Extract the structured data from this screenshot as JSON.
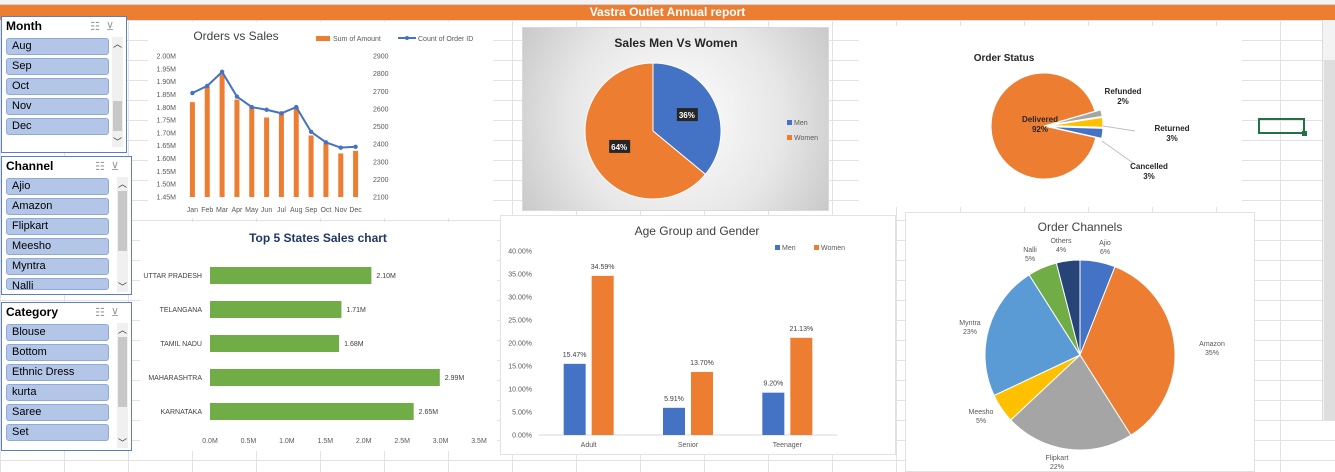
{
  "report": {
    "title": "Vastra Outlet Annual report"
  },
  "slicers": {
    "month": {
      "title": "Month",
      "items": [
        "Aug",
        "Sep",
        "Oct",
        "Nov",
        "Dec"
      ]
    },
    "channel": {
      "title": "Channel",
      "items": [
        "Ajio",
        "Amazon",
        "Flipkart",
        "Meesho",
        "Myntra",
        "Nalli"
      ]
    },
    "category": {
      "title": "Category",
      "items": [
        "Blouse",
        "Bottom",
        "Ethnic Dress",
        "kurta",
        "Saree",
        "Set"
      ]
    },
    "icons": {
      "multiselect": "multi-select-icon",
      "clear": "clear-filter-icon"
    }
  },
  "colors": {
    "orange": "#ed7d31",
    "blue": "#4472c4",
    "gray": "#a5a5a5",
    "gold": "#ffc000",
    "lightblue": "#5b9bd5",
    "green": "#70ad47",
    "navy": "#264478",
    "barGreen": "#70ad47"
  },
  "chart_data": [
    {
      "id": "orders_vs_sales",
      "type": "bar",
      "title": "Orders vs Sales",
      "categories": [
        "Jan",
        "Feb",
        "Mar",
        "Apr",
        "May",
        "Jun",
        "Jul",
        "Aug",
        "Sep",
        "Oct",
        "Nov",
        "Dec"
      ],
      "series": [
        {
          "name": "Sum of Amount",
          "type": "bar",
          "axis": "left",
          "values": [
            1.82,
            1.88,
            1.93,
            1.83,
            1.8,
            1.76,
            1.78,
            1.8,
            1.69,
            1.66,
            1.62,
            1.63
          ]
        },
        {
          "name": "Count of Order ID",
          "type": "line",
          "axis": "right",
          "values": [
            2690,
            2730,
            2810,
            2670,
            2610,
            2595,
            2575,
            2610,
            2470,
            2410,
            2380,
            2385
          ]
        }
      ],
      "yticks_left": [
        "1.45M",
        "1.50M",
        "1.55M",
        "1.60M",
        "1.65M",
        "1.70M",
        "1.75M",
        "1.80M",
        "1.85M",
        "1.90M",
        "1.95M",
        "2.00M"
      ],
      "ylim_left": [
        1.45,
        2.0
      ],
      "yticks_right": [
        "2100",
        "2200",
        "2300",
        "2400",
        "2500",
        "2600",
        "2700",
        "2800",
        "2900"
      ],
      "ylim_right": [
        2100,
        2900
      ],
      "legend": "top-right"
    },
    {
      "id": "sales_men_women",
      "type": "pie",
      "title": "Sales Men Vs Women",
      "labels": [
        "Men",
        "Women"
      ],
      "values": [
        36,
        64
      ],
      "data_labels": [
        "36%",
        "64%"
      ],
      "legend": "right"
    },
    {
      "id": "order_status",
      "type": "pie",
      "title": "Order Status",
      "labels": [
        "Delivered",
        "Refunded",
        "Returned",
        "Cancelled"
      ],
      "values": [
        92,
        2,
        3,
        3
      ],
      "data_labels": [
        "92%",
        "2%",
        "3%",
        "3%"
      ]
    },
    {
      "id": "top5_states",
      "type": "bar",
      "orientation": "horizontal",
      "title": "Top 5 States Sales chart",
      "categories": [
        "UTTAR PRADESH",
        "TELANGANA",
        "TAMIL NADU",
        "MAHARASHTRA",
        "KARNATAKA"
      ],
      "values": [
        2.1,
        1.71,
        1.68,
        2.99,
        2.65
      ],
      "data_labels": [
        "2.10M",
        "1.71M",
        "1.68M",
        "2.99M",
        "2.65M"
      ],
      "xticks": [
        "0.0M",
        "0.5M",
        "1.0M",
        "1.5M",
        "2.0M",
        "2.5M",
        "3.0M",
        "3.5M"
      ],
      "xlim": [
        0,
        3.5
      ]
    },
    {
      "id": "age_group_gender",
      "type": "bar",
      "title": "Age Group and Gender",
      "categories": [
        "Adult",
        "Senior",
        "Teenager"
      ],
      "series": [
        {
          "name": "Men",
          "values": [
            15.47,
            5.91,
            9.2
          ],
          "data_labels": [
            "15.47%",
            "5.91%",
            "9.20%"
          ]
        },
        {
          "name": "Women",
          "values": [
            34.59,
            13.7,
            21.13
          ],
          "data_labels": [
            "34.59%",
            "13.70%",
            "21.13%"
          ]
        }
      ],
      "yticks": [
        "0.00%",
        "5.00%",
        "10.00%",
        "15.00%",
        "20.00%",
        "25.00%",
        "30.00%",
        "35.00%",
        "40.00%"
      ],
      "ylim": [
        0,
        40
      ],
      "legend": "top-right"
    },
    {
      "id": "order_channels",
      "type": "pie",
      "title": "Order Channels",
      "labels": [
        "Ajio",
        "Amazon",
        "Flipkart",
        "Meesho",
        "Myntra",
        "Nalli",
        "Others"
      ],
      "values": [
        6,
        35,
        22,
        5,
        23,
        5,
        4
      ],
      "data_labels": [
        "6%",
        "35%",
        "22%",
        "5%",
        "23%",
        "5%",
        "4%"
      ]
    }
  ]
}
